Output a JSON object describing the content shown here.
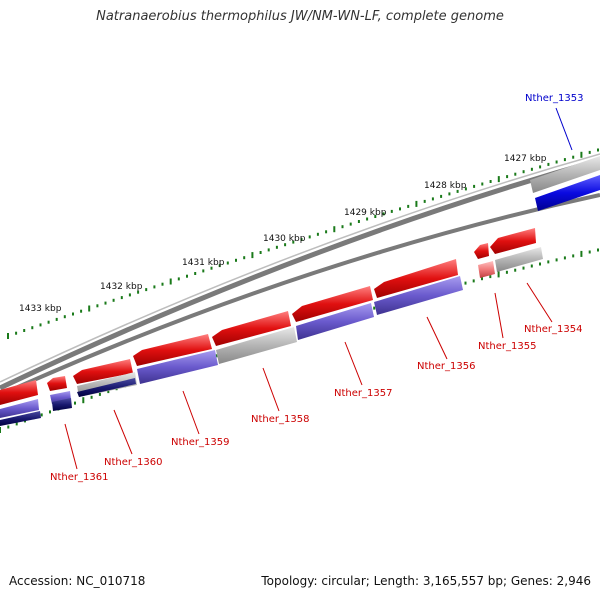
{
  "title": "Natranaerobius thermophilus JW/NM-WN-LF, complete genome",
  "footer": {
    "accession": "Accession: NC_010718",
    "summary": "Topology: circular; Length: 3,165,557 bp; Genes: 2,946"
  },
  "ticks": [
    {
      "label": "1427 kbp"
    },
    {
      "label": "1428 kbp"
    },
    {
      "label": "1429 kbp"
    },
    {
      "label": "1430 kbp"
    },
    {
      "label": "1431 kbp"
    },
    {
      "label": "1432 kbp"
    },
    {
      "label": "1433 kbp"
    }
  ],
  "genes": [
    {
      "name": "Nther_1353",
      "strand": "forward"
    },
    {
      "name": "Nther_1354",
      "strand": "reverse"
    },
    {
      "name": "Nther_1355",
      "strand": "reverse"
    },
    {
      "name": "Nther_1356",
      "strand": "reverse"
    },
    {
      "name": "Nther_1357",
      "strand": "reverse"
    },
    {
      "name": "Nther_1358",
      "strand": "reverse"
    },
    {
      "name": "Nther_1359",
      "strand": "reverse"
    },
    {
      "name": "Nther_1360",
      "strand": "reverse"
    },
    {
      "name": "Nther_1361",
      "strand": "reverse"
    }
  ],
  "colors": {
    "forward_label": "#0000cc",
    "reverse_label": "#cc0000",
    "backbone": "#7a7a7a",
    "tick": "#1a7a1a",
    "cds_red": "#e01010",
    "cds_blue": "#1010e0",
    "rna_purple": "#6a5acd",
    "grey": "#b0b0b0"
  }
}
